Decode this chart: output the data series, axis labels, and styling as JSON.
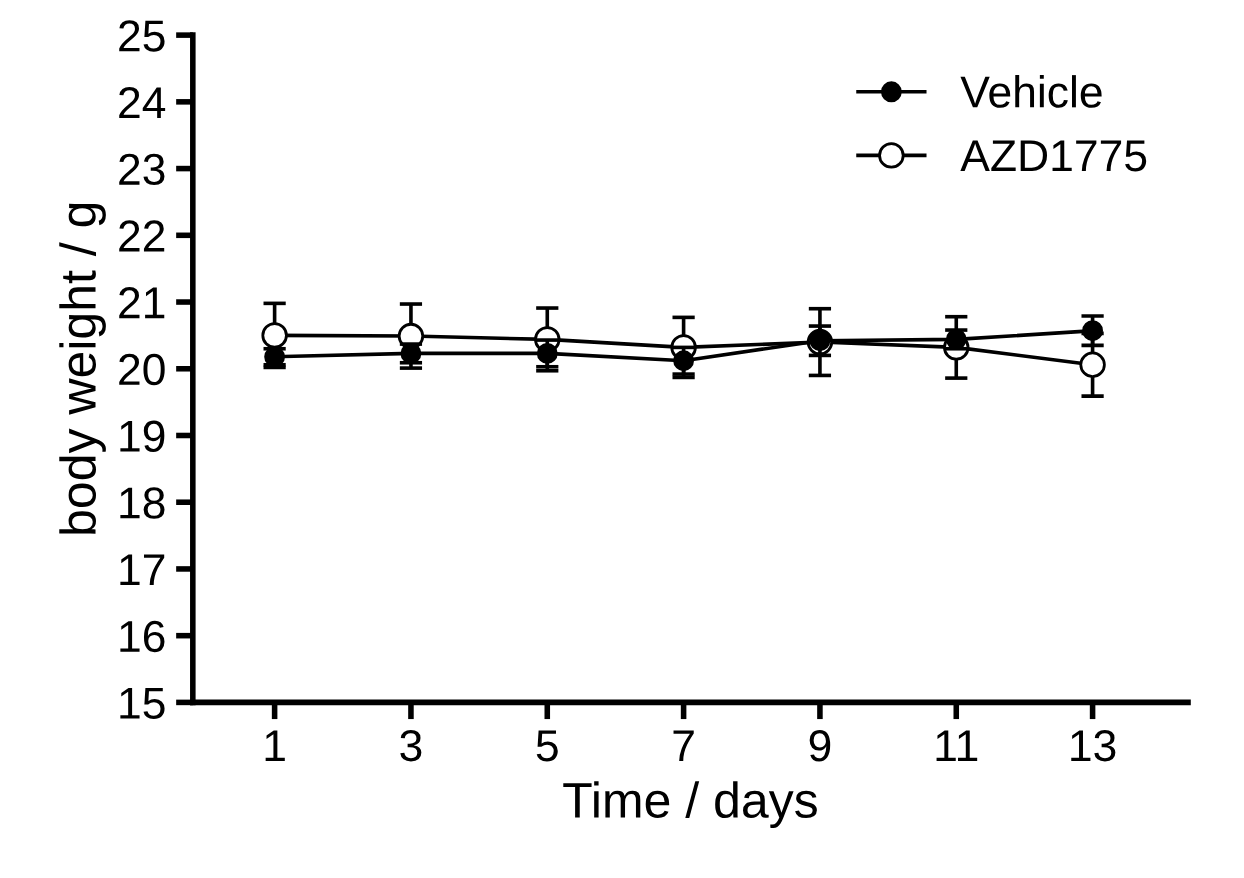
{
  "chart_data": {
    "type": "line",
    "xlabel": "Time / days",
    "ylabel": "body weight / g",
    "x": [
      1,
      3,
      5,
      7,
      9,
      11,
      13
    ],
    "xlim": [
      -0.2,
      14.4
    ],
    "xticks": [
      1,
      3,
      5,
      7,
      9,
      11,
      13
    ],
    "ylim": [
      15,
      25
    ],
    "yticks": [
      15,
      16,
      17,
      18,
      19,
      20,
      21,
      22,
      23,
      24,
      25
    ],
    "series": [
      {
        "name": "Vehicle",
        "color": "#000000",
        "marker": "circle",
        "values": [
          20.18,
          20.23,
          20.23,
          20.12,
          20.42,
          20.44,
          20.57
        ],
        "errors": [
          0.12,
          0.14,
          0.2,
          0.2,
          0.22,
          0.14,
          0.22
        ]
      },
      {
        "name": "AZD1775",
        "color": "#000000",
        "marker": "circle",
        "values": [
          20.5,
          20.49,
          20.44,
          20.32,
          20.4,
          20.32,
          20.06
        ],
        "errors": [
          0.48,
          0.48,
          0.47,
          0.45,
          0.5,
          0.46,
          0.47
        ]
      }
    ],
    "legend": "top right",
    "grid": false
  }
}
